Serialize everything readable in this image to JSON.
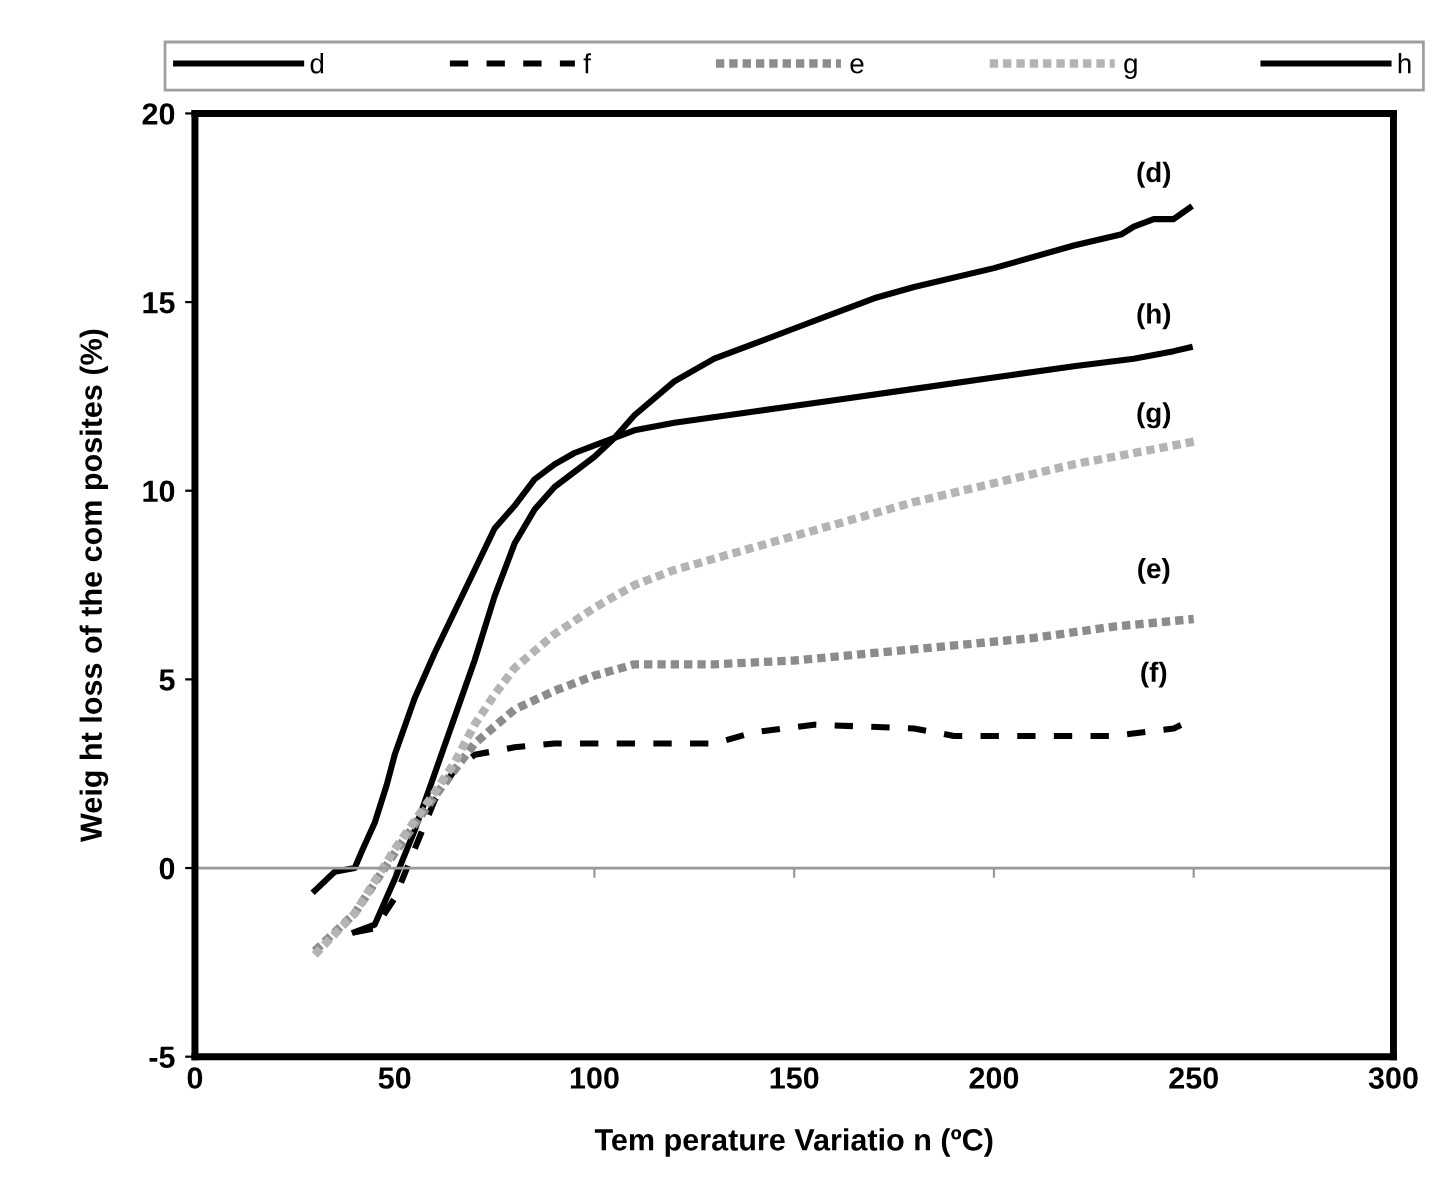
{
  "chart_data": {
    "type": "line",
    "xlabel": "Tem perature Variatio n (ºC)",
    "ylabel": "Weig ht loss of the com posites (%)",
    "xlim": [
      0,
      300
    ],
    "xticks": [
      0,
      50,
      100,
      150,
      200,
      250,
      300
    ],
    "ylim": [
      -5,
      20
    ],
    "yticks": [
      -5,
      0,
      5,
      10,
      15,
      20
    ],
    "grid": false,
    "legend": "top",
    "marker": "none",
    "ref_lines": [
      {
        "axis": "y",
        "value": 0,
        "color": "#999999",
        "line_style": "solid"
      }
    ],
    "series": [
      {
        "name": "d",
        "color": "#000000",
        "line_style": "solid",
        "x": [
          40,
          45,
          50,
          55,
          60,
          65,
          70,
          75,
          80,
          85,
          90,
          100,
          105,
          110,
          120,
          130,
          140,
          150,
          160,
          170,
          180,
          200,
          220,
          232,
          235,
          240,
          245,
          249
        ],
        "values": [
          -1.7,
          -1.5,
          -0.3,
          1,
          2.5,
          4,
          5.5,
          7.2,
          8.6,
          9.5,
          10.1,
          10.9,
          11.4,
          12,
          12.9,
          13.5,
          13.9,
          14.3,
          14.7,
          15.1,
          15.4,
          15.9,
          16.5,
          16.8,
          17.0,
          17.2,
          17.2,
          17.5
        ]
      },
      {
        "name": "f",
        "color": "#000000",
        "line_style": "dashed",
        "x": [
          40,
          45,
          50,
          55,
          60,
          65,
          70,
          80,
          90,
          130,
          140,
          155,
          180,
          190,
          230,
          245,
          249
        ],
        "values": [
          -1.7,
          -1.6,
          -0.8,
          0.5,
          1.8,
          2.6,
          3,
          3.2,
          3.3,
          3.3,
          3.6,
          3.8,
          3.7,
          3.5,
          3.5,
          3.7,
          3.9
        ]
      },
      {
        "name": "e",
        "color": "#8c8c8c",
        "line_style": "dotted",
        "x": [
          30,
          40,
          50,
          60,
          70,
          80,
          90,
          100,
          110,
          130,
          150,
          170,
          190,
          210,
          230,
          250
        ],
        "values": [
          -2.2,
          -1.2,
          0.4,
          1.9,
          3.3,
          4.2,
          4.7,
          5.1,
          5.4,
          5.4,
          5.5,
          5.7,
          5.9,
          6.1,
          6.4,
          6.6
        ]
      },
      {
        "name": "g",
        "color": "#b4b4b4",
        "line_style": "dotted",
        "x": [
          30,
          40,
          50,
          60,
          65,
          70,
          75,
          80,
          90,
          100,
          110,
          120,
          140,
          160,
          180,
          200,
          220,
          240,
          250
        ],
        "values": [
          -2.3,
          -1.2,
          0.5,
          2,
          2.8,
          3.8,
          4.6,
          5.3,
          6.2,
          6.9,
          7.5,
          7.9,
          8.5,
          9.1,
          9.7,
          10.2,
          10.7,
          11.1,
          11.3
        ]
      },
      {
        "name": "h",
        "color": "#000000",
        "line_style": "solid",
        "x": [
          30,
          35,
          40,
          42,
          45,
          48,
          50,
          55,
          60,
          65,
          70,
          75,
          80,
          85,
          90,
          95,
          100,
          110,
          120,
          140,
          160,
          180,
          200,
          220,
          235,
          240,
          245,
          249
        ],
        "values": [
          -0.6,
          -0.1,
          0,
          0.5,
          1.2,
          2.2,
          3,
          4.5,
          5.7,
          6.8,
          7.9,
          9,
          9.6,
          10.3,
          10.7,
          11,
          11.2,
          11.6,
          11.8,
          12.1,
          12.4,
          12.7,
          13,
          13.3,
          13.5,
          13.6,
          13.7,
          13.8
        ]
      }
    ],
    "annotations": [
      "(d)",
      "(h)",
      "(g)",
      "(e)",
      "(f)"
    ]
  }
}
